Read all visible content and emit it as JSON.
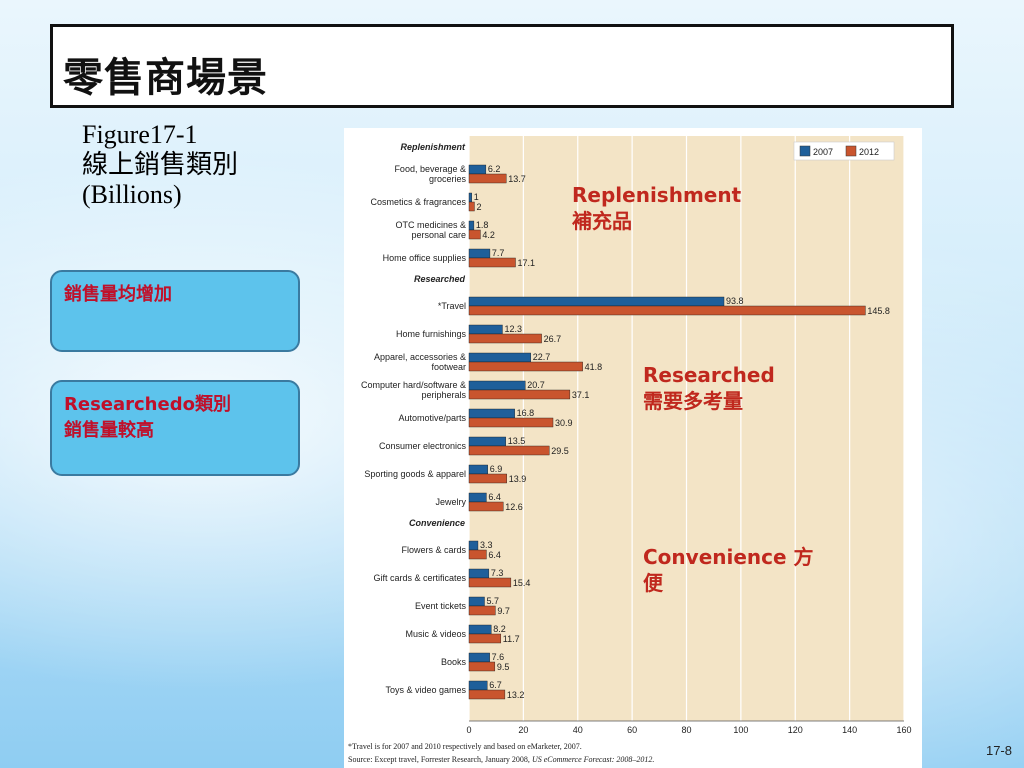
{
  "slide": {
    "title": "零售商場景",
    "figure_title_line1": "Figure17-1",
    "figure_title_line2": "線上銷售類別",
    "figure_title_line3": "(Billions)",
    "page_number": "17-8"
  },
  "notes": {
    "box1": "銷售量均增加",
    "box2_line1": "Researchedo類別",
    "box2_line2": "銷售量較高"
  },
  "annotations": {
    "replenishment_en": "Replenishment",
    "replenishment_zh": "補充品",
    "researched_en": "Researched",
    "researched_zh": "需要多考量",
    "convenience_line1": "Convenience 方",
    "convenience_line2": "便"
  },
  "chart_data": {
    "type": "bar",
    "orientation": "horizontal",
    "legend": [
      "2007",
      "2012"
    ],
    "legend_placement": "top-right",
    "colors": {
      "2007": "#1f5f9a",
      "2012": "#c9552e"
    },
    "xlim": [
      0,
      160
    ],
    "x_ticks": [
      0,
      20,
      40,
      60,
      80,
      100,
      120,
      140,
      160
    ],
    "groups": [
      {
        "name": "Replenishment",
        "items": [
          {
            "label": [
              "Food, beverage &",
              "groceries"
            ],
            "v2007": 6.2,
            "v2012": 13.7,
            "l2007": "6.2",
            "l2012": "13.7"
          },
          {
            "label": [
              "Cosmetics & fragrances"
            ],
            "v2007": 1,
            "v2012": 2,
            "l2007": "1",
            "l2012": "2"
          },
          {
            "label": [
              "OTC medicines &",
              "personal care"
            ],
            "v2007": 1.8,
            "v2012": 4.2,
            "l2007": "1.8",
            "l2012": "4.2"
          },
          {
            "label": [
              "Home office supplies"
            ],
            "v2007": 7.7,
            "v2012": 17.1,
            "l2007": "7.7",
            "l2012": "17.1"
          }
        ]
      },
      {
        "name": "Researched",
        "items": [
          {
            "label": [
              "*Travel"
            ],
            "v2007": 93.8,
            "v2012": 145.8,
            "l2007": "93.8",
            "l2012": "145.8"
          },
          {
            "label": [
              "Home furnishings"
            ],
            "v2007": 12.3,
            "v2012": 26.7,
            "l2007": "12.3",
            "l2012": "26.7"
          },
          {
            "label": [
              "Apparel, accessories &",
              "footwear"
            ],
            "v2007": 22.7,
            "v2012": 41.8,
            "l2007": "22.7",
            "l2012": "41.8"
          },
          {
            "label": [
              "Computer hard/software &",
              "peripherals"
            ],
            "v2007": 20.7,
            "v2012": 37.1,
            "l2007": "20.7",
            "l2012": "37.1"
          },
          {
            "label": [
              "Automotive/parts"
            ],
            "v2007": 16.8,
            "v2012": 30.9,
            "l2007": "16.8",
            "l2012": "30.9"
          },
          {
            "label": [
              "Consumer electronics"
            ],
            "v2007": 13.5,
            "v2012": 29.5,
            "l2007": "13.5",
            "l2012": "29.5"
          },
          {
            "label": [
              "Sporting goods & apparel"
            ],
            "v2007": 6.9,
            "v2012": 13.9,
            "l2007": "6.9",
            "l2012": "13.9"
          },
          {
            "label": [
              "Jewelry"
            ],
            "v2007": 6.4,
            "v2012": 12.6,
            "l2007": "6.4",
            "l2012": "12.6"
          }
        ]
      },
      {
        "name": "Convenience",
        "items": [
          {
            "label": [
              "Flowers & cards"
            ],
            "v2007": 3.3,
            "v2012": 6.4,
            "l2007": "3.3",
            "l2012": "6.4"
          },
          {
            "label": [
              "Gift cards & certificates"
            ],
            "v2007": 7.3,
            "v2012": 15.4,
            "l2007": "7.3",
            "l2012": "15.4"
          },
          {
            "label": [
              "Event tickets"
            ],
            "v2007": 5.7,
            "v2012": 9.7,
            "l2007": "5.7",
            "l2012": "9.7"
          },
          {
            "label": [
              "Music & videos"
            ],
            "v2007": 8.2,
            "v2012": 11.7,
            "l2007": "8.2",
            "l2012": "11.7"
          },
          {
            "label": [
              "Books"
            ],
            "v2007": 7.6,
            "v2012": 9.5,
            "l2007": "7.6",
            "l2012": "9.5"
          },
          {
            "label": [
              "Toys & video games"
            ],
            "v2007": 6.7,
            "v2012": 13.2,
            "l2007": "6.7",
            "l2012": "13.2"
          }
        ]
      }
    ],
    "footnote1": "*Travel is for 2007 and 2010 respectively and based on eMarketer, 2007.",
    "footnote2_a": "Source: Except travel, Forrester Research, January 2008, ",
    "footnote2_b": "US eCommerce Forecast: 2008–2012."
  }
}
